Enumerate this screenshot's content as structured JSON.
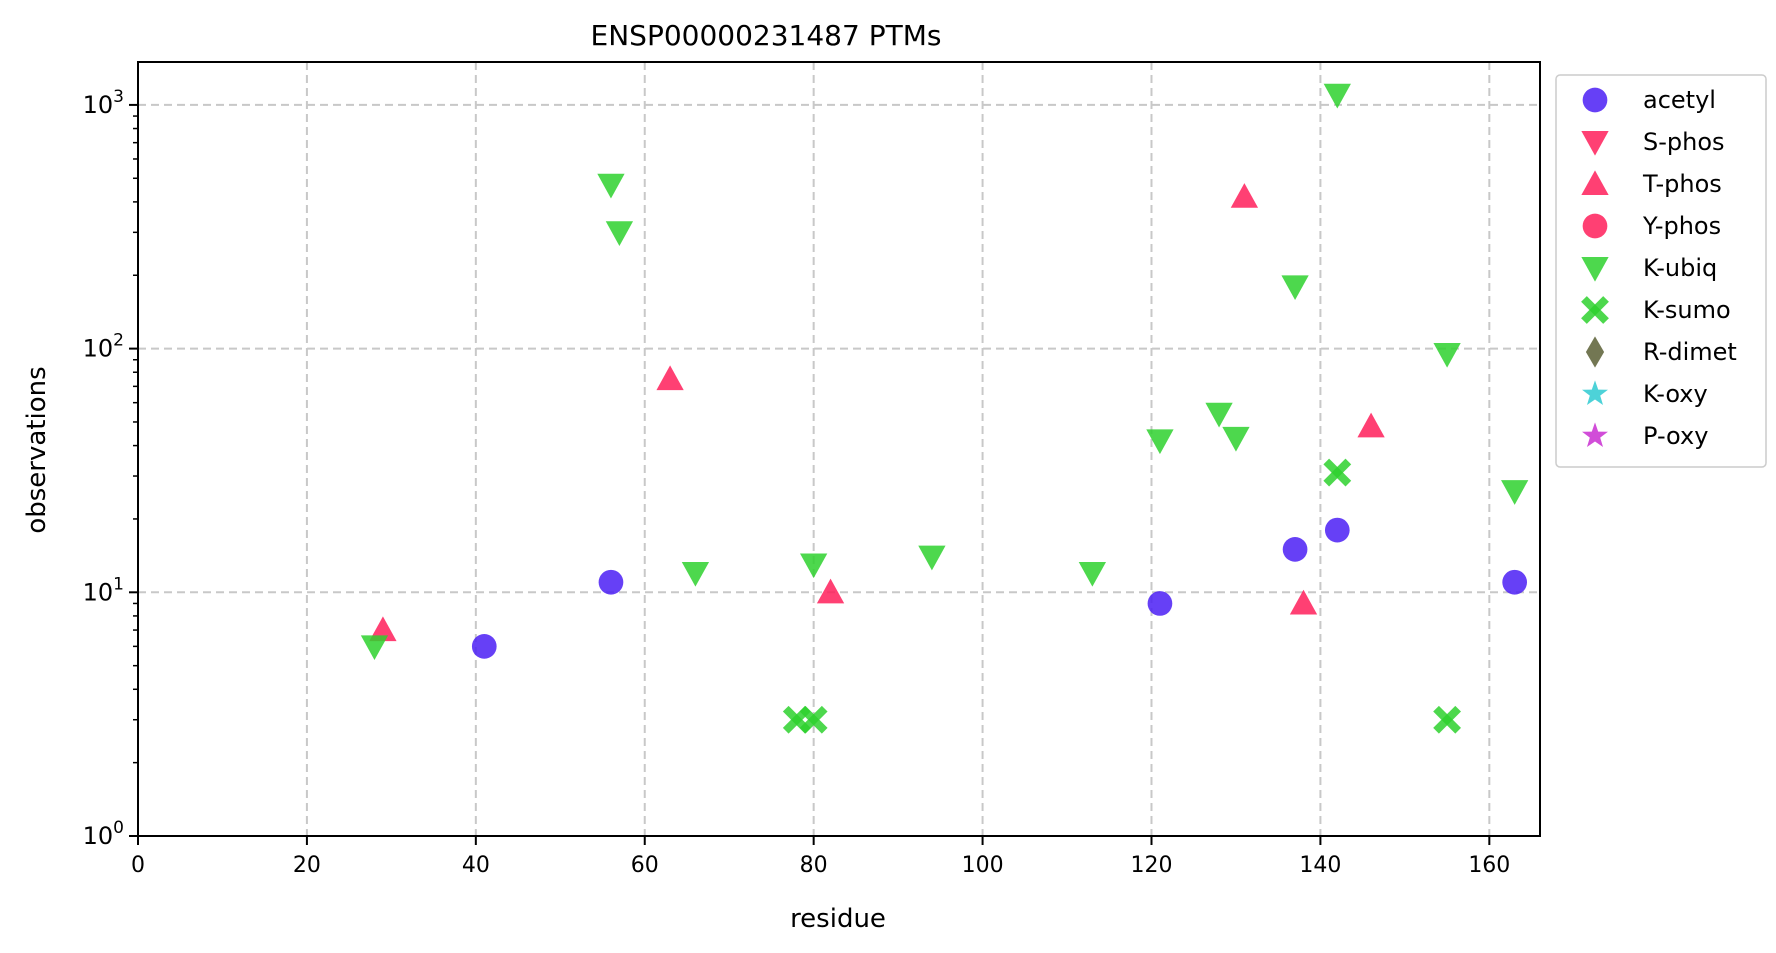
{
  "chart_data": {
    "type": "scatter",
    "title": "ENSP00000231487 PTMs",
    "xlabel": "residue",
    "ylabel": "observations",
    "xlim": [
      0,
      166
    ],
    "ylim": [
      1,
      1500
    ],
    "yscale": "log",
    "grid": true,
    "legend_position": "outside-right",
    "x_ticks": [
      {
        "value": 0,
        "label": "0"
      },
      {
        "value": 20,
        "label": "20"
      },
      {
        "value": 40,
        "label": "40"
      },
      {
        "value": 60,
        "label": "60"
      },
      {
        "value": 80,
        "label": "80"
      },
      {
        "value": 100,
        "label": "100"
      },
      {
        "value": 120,
        "label": "120"
      },
      {
        "value": 140,
        "label": "140"
      },
      {
        "value": 160,
        "label": "160"
      }
    ],
    "y_ticks": [
      {
        "value": 1,
        "base": "10",
        "exp": "0"
      },
      {
        "value": 10,
        "base": "10",
        "exp": "1"
      },
      {
        "value": 100,
        "base": "10",
        "exp": "2"
      },
      {
        "value": 1000,
        "base": "10",
        "exp": "3"
      }
    ],
    "series": [
      {
        "name": "acetyl",
        "marker": "circle",
        "color": "#4b1ef5",
        "points": [
          [
            41,
            6
          ],
          [
            56,
            11
          ],
          [
            121,
            9
          ],
          [
            137,
            15
          ],
          [
            142,
            18
          ],
          [
            163,
            11
          ]
        ]
      },
      {
        "name": "S-phos",
        "marker": "triangle-down",
        "color": "#ff1f5a",
        "points": []
      },
      {
        "name": "T-phos",
        "marker": "triangle-up",
        "color": "#ff1f5a",
        "points": [
          [
            29,
            7
          ],
          [
            63,
            75
          ],
          [
            82,
            10
          ],
          [
            131,
            420
          ],
          [
            138,
            9
          ],
          [
            146,
            48
          ]
        ]
      },
      {
        "name": "Y-phos",
        "marker": "circle",
        "color": "#ff1f5a",
        "points": []
      },
      {
        "name": "K-ubiq",
        "marker": "triangle-down",
        "color": "#2ed12e",
        "points": [
          [
            28,
            6
          ],
          [
            56,
            470
          ],
          [
            57,
            300
          ],
          [
            66,
            12
          ],
          [
            80,
            13
          ],
          [
            94,
            14
          ],
          [
            113,
            12
          ],
          [
            121,
            42
          ],
          [
            128,
            54
          ],
          [
            130,
            43
          ],
          [
            137,
            180
          ],
          [
            142,
            1100
          ],
          [
            155,
            95
          ],
          [
            163,
            26
          ]
        ]
      },
      {
        "name": "K-sumo",
        "marker": "x",
        "color": "#2ed12e",
        "points": [
          [
            78,
            3
          ],
          [
            80,
            3
          ],
          [
            142,
            31
          ],
          [
            155,
            3
          ]
        ]
      },
      {
        "name": "R-dimet",
        "marker": "diamond",
        "color": "#5a5f35",
        "points": []
      },
      {
        "name": "K-oxy",
        "marker": "star",
        "color": "#2ecad1",
        "points": []
      },
      {
        "name": "P-oxy",
        "marker": "star",
        "color": "#c92ed1",
        "points": []
      }
    ]
  }
}
